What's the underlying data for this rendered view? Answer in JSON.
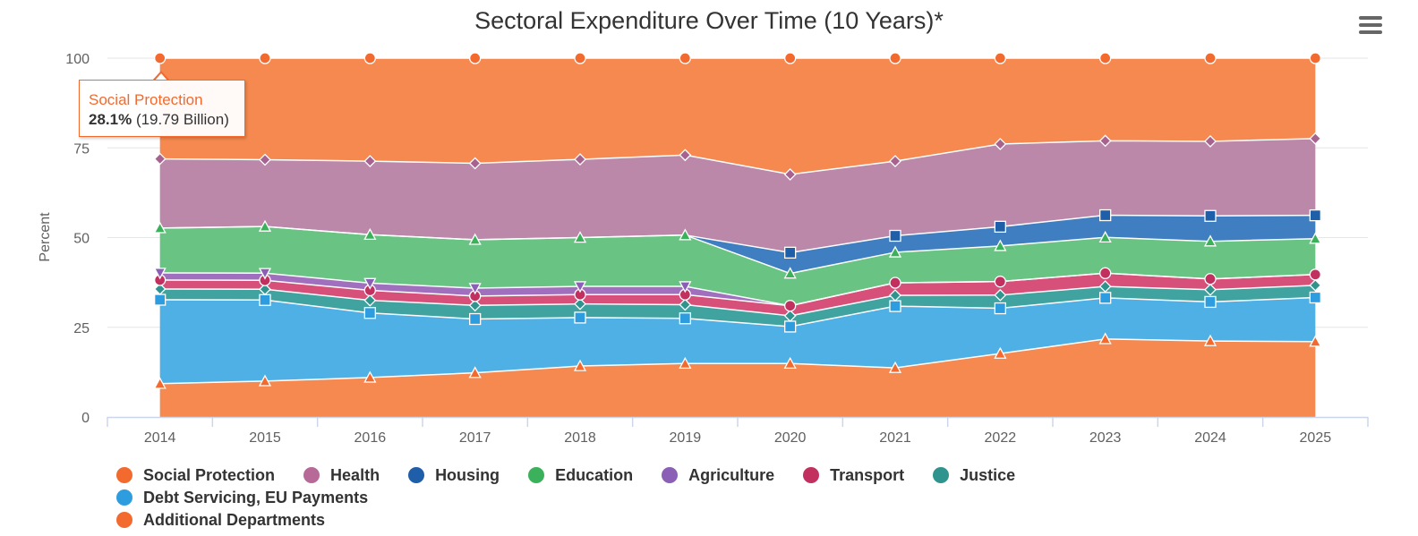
{
  "chart_data": {
    "type": "area",
    "title": "Sectoral Expenditure Over Time (10 Years)*",
    "ylabel": "Percent",
    "xlabel": "",
    "ylim": [
      0,
      100
    ],
    "yticks": [
      "0",
      "25",
      "50",
      "75",
      "100"
    ],
    "categories": [
      "2014",
      "2015",
      "2016",
      "2017",
      "2018",
      "2019",
      "2020",
      "2021",
      "2022",
      "2023",
      "2024",
      "2025"
    ],
    "stacking": "percent",
    "grid": true,
    "legend_position": "bottom",
    "series": [
      {
        "name": "Additional Departments",
        "color": "#f5894f",
        "marker": "triangle",
        "values": [
          9.3,
          10,
          11,
          12.3,
          14.2,
          14.9,
          14.9,
          13.7,
          17.8,
          21.8,
          21.2,
          21
        ]
      },
      {
        "name": "Debt Servicing, EU Payments",
        "color": "#4fb0e6",
        "marker": "square",
        "values": [
          23.4,
          22.6,
          18,
          15,
          13.5,
          12.6,
          10.3,
          17.2,
          12.7,
          11.5,
          10.9,
          12.3
        ]
      },
      {
        "name": "Justice",
        "color": "#40a39f",
        "marker": "diamond",
        "values": [
          3,
          3,
          3.5,
          3.8,
          3.8,
          3.8,
          3,
          3,
          3.7,
          3.2,
          3.4,
          3.4
        ]
      },
      {
        "name": "Transport",
        "color": "#d6507a",
        "marker": "circle",
        "values": [
          2.5,
          2.5,
          2.8,
          2.6,
          2.6,
          2.8,
          2.8,
          3.5,
          3.8,
          3.7,
          3,
          3
        ]
      },
      {
        "name": "Agriculture",
        "color": "#a070bf",
        "marker": "triangle-down",
        "values": [
          2,
          2,
          2,
          2.2,
          2.3,
          2.3,
          0,
          0,
          0,
          0,
          0,
          0
        ]
      },
      {
        "name": "Education",
        "color": "#69c383",
        "marker": "triangle",
        "values": [
          12.5,
          13,
          13.5,
          13.5,
          13.6,
          14.3,
          9,
          8.5,
          10,
          10,
          10.5,
          10
        ]
      },
      {
        "name": "Housing",
        "color": "#3f7fc1",
        "marker": "square",
        "values": [
          0,
          0,
          0,
          0,
          0,
          0,
          5.8,
          4.6,
          5.4,
          6.2,
          7.1,
          6.5
        ]
      },
      {
        "name": "Health",
        "color": "#bb88a9",
        "marker": "diamond",
        "values": [
          19.3,
          18.6,
          20.5,
          21.3,
          21.8,
          22.3,
          21.8,
          20.8,
          23.2,
          20.8,
          20.8,
          21.4
        ]
      },
      {
        "name": "Social Protection",
        "color": "#f5894f",
        "marker": "circle",
        "values": [
          28.1,
          28.3,
          28.7,
          29.3,
          28.2,
          27,
          32.4,
          28.7,
          24.1,
          23.1,
          23.2,
          22.4
        ]
      }
    ],
    "legend": {
      "row1": [
        {
          "name": "Social Protection",
          "color": "#f26a2e"
        },
        {
          "name": "Health",
          "color": "#b76a97"
        },
        {
          "name": "Housing",
          "color": "#1f5ea8"
        },
        {
          "name": "Education",
          "color": "#3cb15b"
        },
        {
          "name": "Agriculture",
          "color": "#8a5fb5"
        },
        {
          "name": "Transport",
          "color": "#c2305f"
        },
        {
          "name": "Justice",
          "color": "#2f938e"
        },
        {
          "name": "Debt Servicing, EU Payments",
          "color": "#2e9de0"
        }
      ],
      "row2": [
        {
          "name": "Additional Departments",
          "color": "#f26a2e"
        }
      ]
    },
    "tooltip": {
      "series": "Social Protection",
      "category": "2014",
      "percent": "28.1%",
      "detail": "(19.79 Billion)"
    }
  }
}
